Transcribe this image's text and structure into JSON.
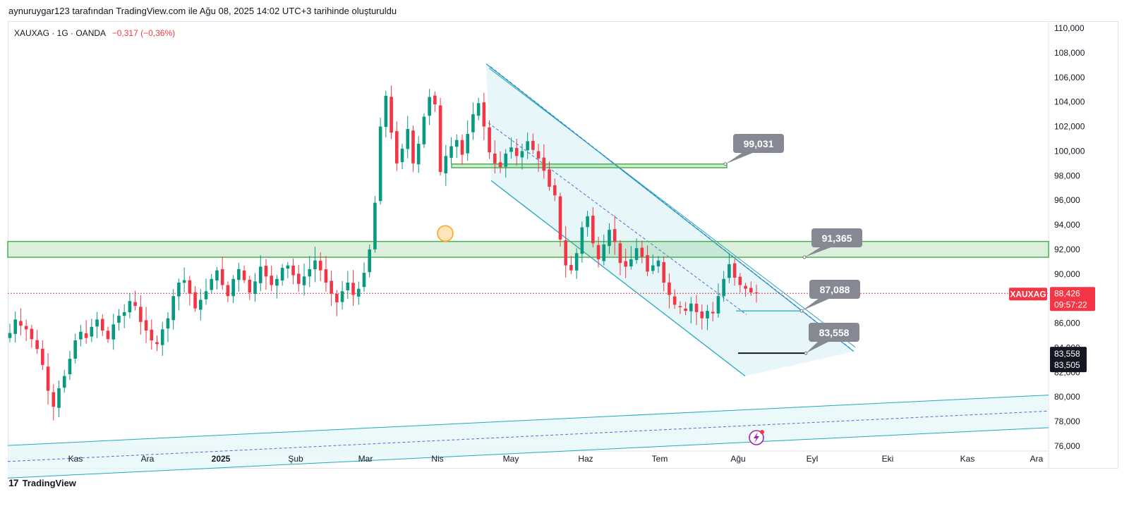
{
  "header": {
    "text": "aynuruygar123 tarafından TradingView.com ile Ağu 08, 2025 14:02 UTC+3 tarihinde oluşturuldu"
  },
  "legend": {
    "symbol": "XAUXAG · 1G · OANDA",
    "change": "−0,317 (−0,36%)"
  },
  "footer": {
    "logo_mark": "17",
    "brand": "TradingView"
  },
  "colors": {
    "up": "#089981",
    "down": "#f23645",
    "zone": "#4caf50",
    "channel": "#22a9be",
    "label_bg": "#868993",
    "price_badge": "#f23645",
    "dark_badge": "#131722"
  },
  "chart_data": {
    "type": "candlestick",
    "symbol": "XAUXAG",
    "interval": "1G",
    "source": "OANDA",
    "ylim": [
      76000,
      110500
    ],
    "y_ticks": [
      "110,000",
      "108,000",
      "106,000",
      "104,000",
      "102,000",
      "100,000",
      "98,000",
      "96,000",
      "94,000",
      "92,000",
      "90,000",
      "88,000",
      "86,000",
      "84,000",
      "82,000",
      "80,000",
      "78,000",
      "76,000"
    ],
    "y_tick_values": [
      110000,
      108000,
      106000,
      104000,
      102000,
      100000,
      98000,
      96000,
      94000,
      92000,
      90000,
      88000,
      86000,
      84000,
      82000,
      80000,
      78000,
      76000
    ],
    "x_ticks": [
      "Kas",
      "Ara",
      "2025",
      "Şub",
      "Mar",
      "Nis",
      "May",
      "Haz",
      "Tem",
      "Ağu",
      "Eyl",
      "Eki",
      "Kas",
      "Ara"
    ],
    "current_price": {
      "symbol": "XAUXAG",
      "value": "88,426",
      "countdown": "09:57:22"
    },
    "axis_badges": [
      "83,558",
      "83,505"
    ],
    "callouts": [
      "99,031",
      "91,365",
      "87,088",
      "83,558"
    ],
    "close_series": [
      85200,
      86300,
      85800,
      85500,
      84700,
      83900,
      82600,
      80500,
      79200,
      80700,
      81700,
      83100,
      84600,
      85300,
      84800,
      85700,
      86300,
      85400,
      84700,
      85900,
      86600,
      86900,
      87800,
      87400,
      86100,
      85400,
      84600,
      84300,
      85500,
      86400,
      88200,
      89300,
      89500,
      88400,
      87200,
      87900,
      88600,
      89600,
      90300,
      89100,
      88200,
      89600,
      90400,
      89500,
      88500,
      89400,
      90600,
      89800,
      89100,
      89600,
      90500,
      90700,
      89900,
      89200,
      89800,
      90400,
      91100,
      90300,
      89300,
      88400,
      87700,
      88600,
      89300,
      88300,
      88800,
      90100,
      92000,
      95800,
      102000,
      104500,
      101500,
      99000,
      100200,
      101800,
      99000,
      100600,
      102800,
      104400,
      103800,
      98300,
      99600,
      100400,
      100900,
      99700,
      101400,
      103000,
      103900,
      102000,
      99900,
      99000,
      98700,
      99800,
      100300,
      99600,
      100000,
      100800,
      100100,
      99400,
      98400,
      97100,
      96400,
      92800,
      90700,
      90300,
      91700,
      93800,
      94700,
      92500,
      91200,
      92400,
      93600,
      92600,
      90900,
      90600,
      91200,
      92100,
      91400,
      90200,
      90700,
      91100,
      89300,
      88300,
      87500,
      87300,
      87000,
      87600,
      86900,
      86400,
      87000,
      86800,
      88200,
      89600,
      90800,
      89700,
      89100,
      88800,
      88500,
      88426
    ],
    "annotations": {
      "horizontal_zones": [
        [
          91365,
          92650
        ],
        [
          98650,
          98950
        ]
      ],
      "falling_channel_upper": [
        [
          "Nis",
          107100
        ],
        [
          "Eyl",
          83700
        ]
      ],
      "rising_channel": "lower long-term channel around 76,000 – 80,000"
    }
  }
}
